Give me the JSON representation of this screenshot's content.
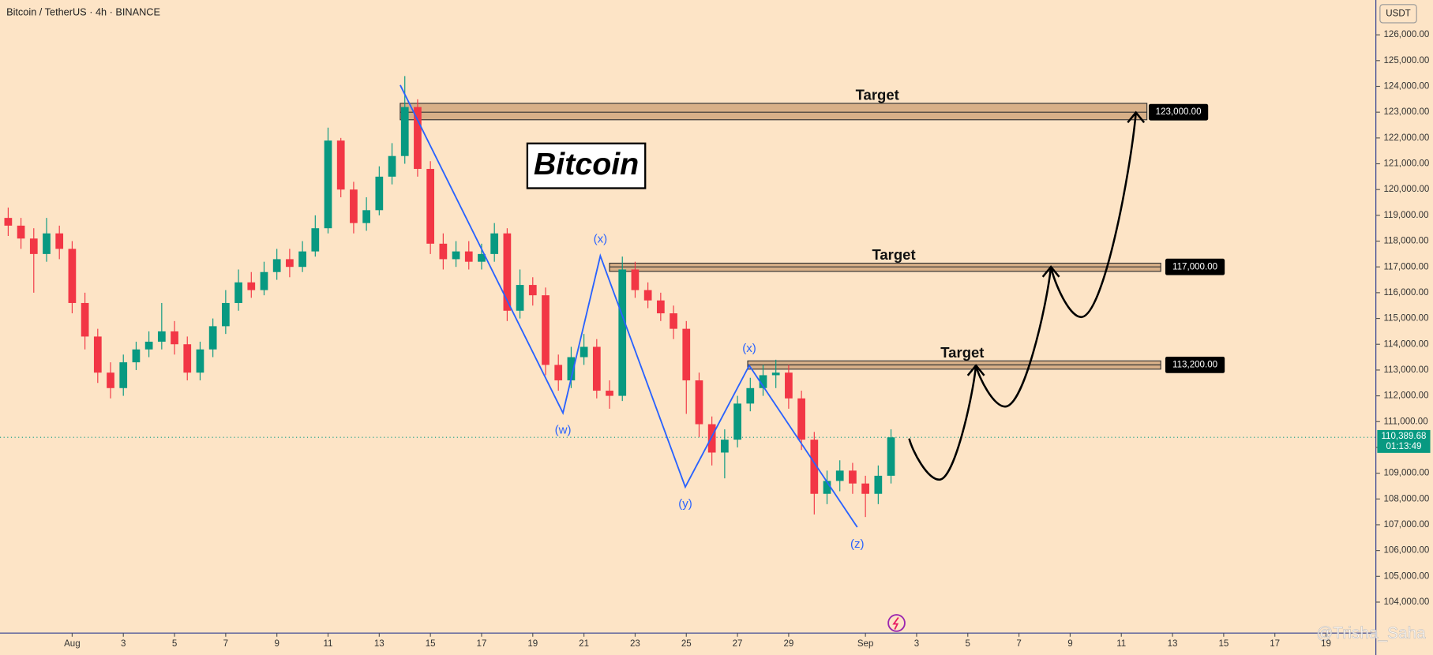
{
  "chart_data": {
    "type": "candlestick",
    "title": "Bitcoin / TetherUS · 4h · BINANCE",
    "currency": "USDT",
    "annotation": "Bitcoin",
    "watermark": "@Trisha_Saha",
    "up_color": "#089981",
    "down_color": "#f23645",
    "xlim": [
      -2.82,
      50.93
    ],
    "ylim": [
      102800,
      127350
    ],
    "xticks": [
      {
        "value": 0,
        "label": "Aug"
      },
      {
        "value": 2,
        "label": "3"
      },
      {
        "value": 4,
        "label": "5"
      },
      {
        "value": 6,
        "label": "7"
      },
      {
        "value": 8,
        "label": "9"
      },
      {
        "value": 10,
        "label": "11"
      },
      {
        "value": 12,
        "label": "13"
      },
      {
        "value": 14,
        "label": "15"
      },
      {
        "value": 16,
        "label": "17"
      },
      {
        "value": 18,
        "label": "19"
      },
      {
        "value": 20,
        "label": "21"
      },
      {
        "value": 22,
        "label": "23"
      },
      {
        "value": 24,
        "label": "25"
      },
      {
        "value": 26,
        "label": "27"
      },
      {
        "value": 28,
        "label": "29"
      },
      {
        "value": 31,
        "label": "Sep"
      },
      {
        "value": 33,
        "label": "3"
      },
      {
        "value": 35,
        "label": "5"
      },
      {
        "value": 37,
        "label": "7"
      },
      {
        "value": 39,
        "label": "9"
      },
      {
        "value": 41,
        "label": "11"
      },
      {
        "value": 43,
        "label": "13"
      },
      {
        "value": 45,
        "label": "15"
      },
      {
        "value": 47,
        "label": "17"
      },
      {
        "value": 49,
        "label": "19"
      }
    ],
    "yticks": [
      {
        "value": 104000,
        "label": "104,000.00"
      },
      {
        "value": 105000,
        "label": "105,000.00"
      },
      {
        "value": 106000,
        "label": "106,000.00"
      },
      {
        "value": 107000,
        "label": "107,000.00"
      },
      {
        "value": 108000,
        "label": "108,000.00"
      },
      {
        "value": 109000,
        "label": "109,000.00"
      },
      {
        "value": 110000,
        "label": "110,000.00"
      },
      {
        "value": 111000,
        "label": "111,000.00"
      },
      {
        "value": 112000,
        "label": "112,000.00"
      },
      {
        "value": 113000,
        "label": "113,000.00"
      },
      {
        "value": 114000,
        "label": "114,000.00"
      },
      {
        "value": 115000,
        "label": "115,000.00"
      },
      {
        "value": 116000,
        "label": "116,000.00"
      },
      {
        "value": 117000,
        "label": "117,000.00"
      },
      {
        "value": 118000,
        "label": "118,000.00"
      },
      {
        "value": 119000,
        "label": "119,000.00"
      },
      {
        "value": 120000,
        "label": "120,000.00"
      },
      {
        "value": 121000,
        "label": "121,000.00"
      },
      {
        "value": 122000,
        "label": "122,000.00"
      },
      {
        "value": 123000,
        "label": "123,000.00"
      },
      {
        "value": 124000,
        "label": "124,000.00"
      },
      {
        "value": 125000,
        "label": "125,000.00"
      },
      {
        "value": 126000,
        "label": "126,000.00"
      }
    ],
    "candles": {
      "x": [
        -2.5,
        -2,
        -1.5,
        -1,
        -0.5,
        0,
        0.5,
        1,
        1.5,
        2,
        2.5,
        3,
        3.5,
        4,
        4.5,
        5,
        5.5,
        6,
        6.5,
        7,
        7.5,
        8,
        8.5,
        9,
        9.5,
        10,
        10.5,
        11,
        11.5,
        12,
        12.5,
        13,
        13.5,
        14,
        14.5,
        15,
        15.5,
        16,
        16.5,
        17,
        17.5,
        18,
        18.5,
        19,
        19.5,
        20,
        20.5,
        21,
        21.5,
        22,
        22.5,
        23,
        23.5,
        24,
        24.5,
        25,
        25.5,
        26,
        26.5,
        27,
        27.5,
        28,
        28.5,
        29,
        29.5,
        30,
        30.5,
        31,
        31.5,
        32
      ],
      "open": [
        118900,
        118600,
        118100,
        117500,
        118300,
        117700,
        115600,
        114300,
        112900,
        112300,
        113300,
        113800,
        114100,
        114500,
        114000,
        112900,
        113800,
        114700,
        115600,
        116400,
        116100,
        116800,
        117300,
        117000,
        117600,
        118500,
        121900,
        120000,
        118700,
        119200,
        120500,
        121300,
        123200,
        120800,
        117900,
        117300,
        117600,
        117200,
        117500,
        118300,
        115300,
        116300,
        115900,
        113200,
        112600,
        113500,
        113900,
        112200,
        112000,
        116900,
        116100,
        115700,
        115200,
        114600,
        112600,
        110900,
        109800,
        110300,
        111700,
        112300,
        112800,
        112900,
        111900,
        110300,
        108200,
        108700,
        109100,
        108600,
        108200,
        108900
      ],
      "high": [
        119300,
        118900,
        118500,
        118900,
        118600,
        118000,
        116000,
        114600,
        113300,
        113600,
        114100,
        114500,
        115600,
        114900,
        114300,
        114100,
        115000,
        116100,
        116900,
        116800,
        117200,
        117700,
        117700,
        118000,
        119000,
        122400,
        122000,
        120300,
        119700,
        120900,
        121800,
        124400,
        123500,
        121100,
        118300,
        118000,
        118000,
        117900,
        118700,
        118500,
        116900,
        116600,
        116200,
        113600,
        113900,
        114400,
        114200,
        112600,
        117400,
        117200,
        116400,
        116000,
        115500,
        114900,
        112900,
        111200,
        110700,
        112000,
        112700,
        113200,
        113400,
        113200,
        112200,
        110600,
        109100,
        109500,
        109400,
        108900,
        109300,
        110700
      ],
      "low": [
        118200,
        117700,
        116000,
        117200,
        117300,
        115200,
        113800,
        112500,
        111900,
        112000,
        113000,
        113500,
        113800,
        113600,
        112600,
        112600,
        113500,
        114400,
        115300,
        115800,
        115900,
        116500,
        116600,
        116800,
        117400,
        118300,
        119700,
        118300,
        118400,
        119000,
        120200,
        121000,
        120500,
        117500,
        116900,
        117000,
        116900,
        116900,
        117200,
        114900,
        115000,
        115500,
        112800,
        112200,
        112300,
        113200,
        111900,
        111500,
        111800,
        115800,
        115400,
        114900,
        114200,
        111300,
        110400,
        109300,
        108800,
        110000,
        111400,
        112000,
        112300,
        111500,
        109900,
        107400,
        107800,
        108300,
        108200,
        107300,
        107800,
        108600
      ],
      "close": [
        118600,
        118100,
        117500,
        118300,
        117700,
        115600,
        114300,
        112900,
        112300,
        113300,
        113800,
        114100,
        114500,
        114000,
        112900,
        113800,
        114700,
        115600,
        116400,
        116100,
        116800,
        117300,
        117000,
        117600,
        118500,
        121900,
        120000,
        118700,
        119200,
        120500,
        121300,
        123200,
        120800,
        117900,
        117300,
        117600,
        117200,
        117500,
        118300,
        115300,
        116300,
        115900,
        113200,
        112600,
        113500,
        113900,
        112200,
        112000,
        116900,
        116100,
        115700,
        115200,
        114600,
        112600,
        110900,
        109800,
        110300,
        111700,
        112300,
        112800,
        112900,
        111900,
        110300,
        108200,
        108700,
        109100,
        108600,
        108200,
        108900,
        110390
      ]
    },
    "current_price": {
      "value": 110389.68,
      "label": "110,389.68",
      "countdown": "01:13:49",
      "color": "#089981"
    },
    "targets": [
      {
        "label": "Target",
        "value": 123000,
        "price_label": "123,000.00",
        "top": 123343,
        "bottom": 122706,
        "x_start": 12.82,
        "x_end": 42.0
      },
      {
        "label": "Target",
        "value": 117000,
        "price_label": "117,000.00",
        "top": 117144,
        "bottom": 116825,
        "x_start": 21.0,
        "x_end": 42.54
      },
      {
        "label": "Target",
        "value": 113200,
        "price_label": "113,200.00",
        "top": 113354,
        "bottom": 113035,
        "x_start": 26.4,
        "x_end": 42.54
      }
    ],
    "wave": {
      "color": "#2962ff",
      "x": [
        12.82,
        19.18,
        20.64,
        23.96,
        26.46,
        30.68
      ],
      "y": [
        124052,
        111335,
        117428,
        108465,
        113177,
        106907
      ],
      "labels": [
        null,
        "(w)",
        "(x)",
        "(y)",
        "(x)",
        "(z)"
      ]
    },
    "projection": {
      "color": "#000000",
      "x": [
        32.71,
        33.89,
        35.32,
        36.46,
        38.25,
        39.43,
        41.57
      ],
      "y": [
        110343,
        108749,
        113177,
        111583,
        117003,
        115054,
        122989
      ]
    }
  }
}
